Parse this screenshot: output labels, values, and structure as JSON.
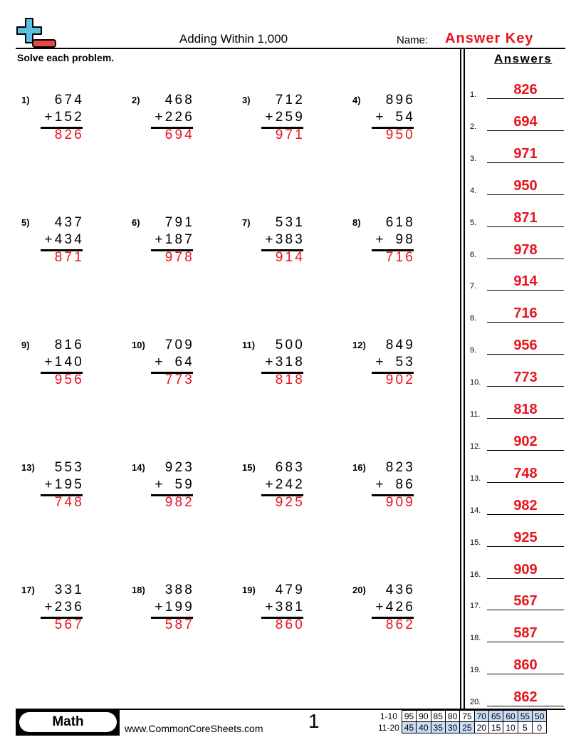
{
  "header": {
    "title": "Adding Within 1,000",
    "name_label": "Name:",
    "answer_key": "Answer Key",
    "instructions": "Solve each problem.",
    "answers_heading": "Answers",
    "logo_icon": "plus-minus-logo-icon"
  },
  "problems": [
    {
      "n": "1)",
      "a": "674",
      "b": "152",
      "s": "826"
    },
    {
      "n": "2)",
      "a": "468",
      "b": "226",
      "s": "694"
    },
    {
      "n": "3)",
      "a": "712",
      "b": "259",
      "s": "971"
    },
    {
      "n": "4)",
      "a": "896",
      "b": "54",
      "s": "950"
    },
    {
      "n": "5)",
      "a": "437",
      "b": "434",
      "s": "871"
    },
    {
      "n": "6)",
      "a": "791",
      "b": "187",
      "s": "978"
    },
    {
      "n": "7)",
      "a": "531",
      "b": "383",
      "s": "914"
    },
    {
      "n": "8)",
      "a": "618",
      "b": "98",
      "s": "716"
    },
    {
      "n": "9)",
      "a": "816",
      "b": "140",
      "s": "956"
    },
    {
      "n": "10)",
      "a": "709",
      "b": "64",
      "s": "773"
    },
    {
      "n": "11)",
      "a": "500",
      "b": "318",
      "s": "818"
    },
    {
      "n": "12)",
      "a": "849",
      "b": "53",
      "s": "902"
    },
    {
      "n": "13)",
      "a": "553",
      "b": "195",
      "s": "748"
    },
    {
      "n": "14)",
      "a": "923",
      "b": "59",
      "s": "982"
    },
    {
      "n": "15)",
      "a": "683",
      "b": "242",
      "s": "925"
    },
    {
      "n": "16)",
      "a": "823",
      "b": "86",
      "s": "909"
    },
    {
      "n": "17)",
      "a": "331",
      "b": "236",
      "s": "567"
    },
    {
      "n": "18)",
      "a": "388",
      "b": "199",
      "s": "587"
    },
    {
      "n": "19)",
      "a": "479",
      "b": "381",
      "s": "860"
    },
    {
      "n": "20)",
      "a": "436",
      "b": "426",
      "s": "862"
    }
  ],
  "answers": [
    {
      "label": "1.",
      "value": "826"
    },
    {
      "label": "2.",
      "value": "694"
    },
    {
      "label": "3.",
      "value": "971"
    },
    {
      "label": "4.",
      "value": "950"
    },
    {
      "label": "5.",
      "value": "871"
    },
    {
      "label": "6.",
      "value": "978"
    },
    {
      "label": "7.",
      "value": "914"
    },
    {
      "label": "8.",
      "value": "716"
    },
    {
      "label": "9.",
      "value": "956"
    },
    {
      "label": "10.",
      "value": "773"
    },
    {
      "label": "11.",
      "value": "818"
    },
    {
      "label": "12.",
      "value": "902"
    },
    {
      "label": "13.",
      "value": "748"
    },
    {
      "label": "14.",
      "value": "982"
    },
    {
      "label": "15.",
      "value": "925"
    },
    {
      "label": "16.",
      "value": "909"
    },
    {
      "label": "17.",
      "value": "567"
    },
    {
      "label": "18.",
      "value": "587"
    },
    {
      "label": "19.",
      "value": "860"
    },
    {
      "label": "20.",
      "value": "862"
    }
  ],
  "footer": {
    "subject": "Math",
    "website": "www.CommonCoreSheets.com",
    "page_number": "1",
    "score_rows": [
      {
        "label": "1-10",
        "scores": [
          "95",
          "90",
          "85",
          "80",
          "75",
          "70",
          "65",
          "60",
          "55",
          "50"
        ],
        "highlighted": [
          false,
          false,
          false,
          false,
          false,
          true,
          true,
          true,
          true,
          true
        ]
      },
      {
        "label": "11-20",
        "scores": [
          "45",
          "40",
          "35",
          "30",
          "25",
          "20",
          "15",
          "10",
          "5",
          "0"
        ],
        "highlighted": [
          true,
          true,
          true,
          true,
          true,
          false,
          false,
          false,
          false,
          false
        ]
      }
    ]
  },
  "colors": {
    "answer_red": "#e8141e",
    "logo_blue": "#5bbfe0",
    "logo_red": "#e84848",
    "score_highlight": "#c9dcf5"
  }
}
